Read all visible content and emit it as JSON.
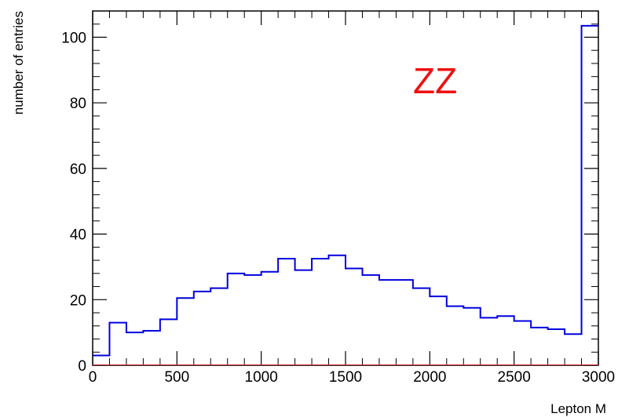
{
  "chart_data": {
    "type": "histogram",
    "title": "",
    "xlabel": "Lepton M",
    "ylabel": "number of entries",
    "xlim": [
      0,
      3000
    ],
    "ylim": [
      0,
      108
    ],
    "bin_width": 100,
    "bin_edges_start": 0,
    "values": [
      3,
      13,
      10,
      10.5,
      14,
      20.5,
      22.5,
      23.5,
      28,
      27.5,
      28.5,
      32.5,
      29,
      32.5,
      33.5,
      29.5,
      27.5,
      26,
      26,
      23.5,
      21,
      18,
      17.5,
      14.5,
      15,
      13.5,
      11.5,
      11,
      9.5,
      103.5
    ],
    "x_ticks": [
      0,
      500,
      1000,
      1500,
      2000,
      2500,
      3000
    ],
    "x_tick_labels": [
      "0",
      "500",
      "1000",
      "1500",
      "2000",
      "2500",
      "3000"
    ],
    "y_ticks": [
      0,
      20,
      40,
      60,
      80,
      100
    ],
    "y_tick_labels": [
      "0",
      "20",
      "40",
      "60",
      "80",
      "100"
    ],
    "annotation": "ZZ",
    "colors": {
      "line": "#0000dd",
      "annotation": "#ee1111",
      "baseline": "#cc2222",
      "axis": "#000000"
    }
  }
}
